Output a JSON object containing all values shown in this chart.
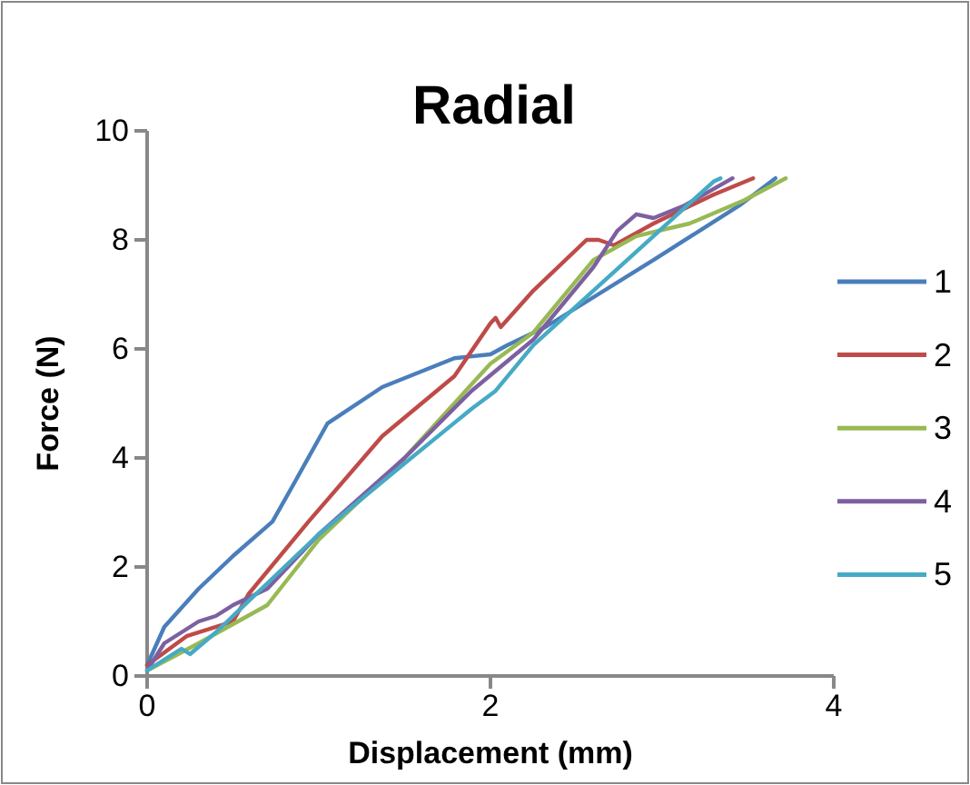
{
  "chart_data": {
    "type": "line",
    "title": "Radial",
    "xlabel": "Displacement (mm)",
    "ylabel": "Force (N)",
    "xlim": [
      0,
      4
    ],
    "xticks": [
      0,
      2,
      4
    ],
    "ylim": [
      0,
      10
    ],
    "yticks": [
      0,
      2,
      4,
      6,
      8,
      10
    ],
    "grid": false,
    "legend": "right",
    "marker": "none",
    "line_style": "solid",
    "series": [
      {
        "name": "1",
        "color": "#4a7ebb",
        "x": [
          0,
          0.1,
          0.3,
          0.5,
          0.73,
          0.85,
          1.05,
          1.37,
          1.79,
          2.0,
          2.1,
          2.32,
          2.95,
          3.45,
          3.66
        ],
        "values": [
          0.2,
          0.9,
          1.6,
          2.2,
          2.83,
          3.5,
          4.63,
          5.3,
          5.83,
          5.9,
          6.07,
          6.4,
          7.63,
          8.63,
          9.13
        ]
      },
      {
        "name": "2",
        "color": "#be4b48",
        "x": [
          0,
          0.23,
          0.5,
          0.59,
          0.94,
          1.37,
          1.79,
          2.0,
          2.03,
          2.06,
          2.25,
          2.56,
          2.63,
          2.72,
          2.95,
          3.3,
          3.53
        ],
        "values": [
          0.2,
          0.73,
          1.0,
          1.5,
          2.83,
          4.4,
          5.5,
          6.47,
          6.57,
          6.4,
          7.07,
          8.0,
          8.0,
          7.9,
          8.3,
          8.83,
          9.13
        ]
      },
      {
        "name": "3",
        "color": "#98b954",
        "x": [
          0,
          0.3,
          0.7,
          1.0,
          1.5,
          2.0,
          2.25,
          2.6,
          2.85,
          3.16,
          3.48,
          3.72
        ],
        "values": [
          0.1,
          0.6,
          1.3,
          2.5,
          4.0,
          5.73,
          6.3,
          7.63,
          8.07,
          8.3,
          8.73,
          9.13
        ]
      },
      {
        "name": "4",
        "color": "#7d60a0",
        "x": [
          0,
          0.1,
          0.3,
          0.4,
          0.5,
          0.7,
          1.0,
          1.5,
          1.89,
          2.25,
          2.6,
          2.74,
          2.85,
          2.95,
          3.13,
          3.41
        ],
        "values": [
          0.1,
          0.6,
          1.0,
          1.1,
          1.3,
          1.6,
          2.6,
          4.0,
          5.23,
          6.17,
          7.5,
          8.17,
          8.47,
          8.4,
          8.63,
          9.13
        ]
      },
      {
        "name": "5",
        "color": "#46aac5",
        "x": [
          0,
          0.2,
          0.25,
          0.4,
          0.7,
          1.0,
          1.5,
          1.89,
          2.03,
          2.25,
          2.6,
          2.95,
          3.3,
          3.34
        ],
        "values": [
          0.1,
          0.5,
          0.4,
          0.8,
          1.7,
          2.6,
          3.9,
          4.9,
          5.23,
          6.07,
          7.07,
          8.07,
          9.07,
          9.13
        ]
      }
    ]
  }
}
